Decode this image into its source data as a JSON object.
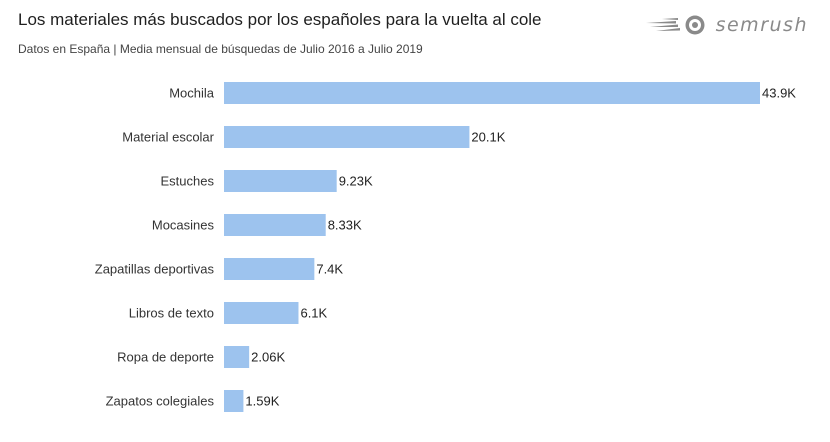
{
  "header": {
    "title": "Los materiales más buscados por los españoles para la vuelta al cole",
    "subtitle": "Datos en España | Media mensual de búsquedas de Julio 2016 a Julio 2019",
    "brand": "semrush"
  },
  "colors": {
    "bar": "#9dc3ee",
    "brand": "#8a8a8a"
  },
  "chart_data": {
    "type": "bar",
    "orientation": "horizontal",
    "categories": [
      "Mochila",
      "Material escolar",
      "Estuches",
      "Mocasines",
      "Zapatillas deportivas",
      "Libros de texto",
      "Ropa de deporte",
      "Zapatos colegiales"
    ],
    "values": [
      43900,
      20100,
      9230,
      8330,
      7400,
      6100,
      2060,
      1590
    ],
    "data_labels": [
      "43.9K",
      "20.1K",
      "9.23K",
      "8.33K",
      "7.4K",
      "6.1K",
      "2.06K",
      "1.59K"
    ],
    "title": "Los materiales más buscados por los españoles para la vuelta al cole",
    "subtitle": "Datos en España | Media mensual de búsquedas de Julio 2016 a Julio 2019",
    "xlim": [
      0,
      43900
    ],
    "grid": false,
    "legend": "none"
  }
}
